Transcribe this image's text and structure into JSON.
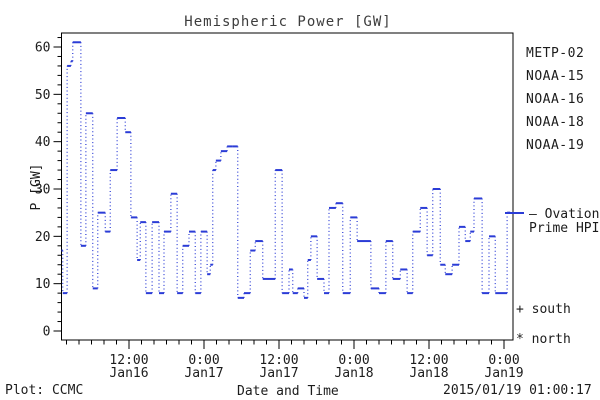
{
  "window": {
    "background": "#ffffff"
  },
  "chart": {
    "plot_credit": "Plot: CCMC",
    "timestamp": "2015/01/19 01:00:17",
    "south_marker": "+ south",
    "north_marker": "* north",
    "ovation_line1": "— Ovation",
    "ovation_line2": "Prime HPI"
  },
  "legend": {
    "items": [
      {
        "label": "METP-02",
        "color": "#1a1a1a"
      },
      {
        "label": "NOAA-15",
        "color": "#1e2bf2"
      },
      {
        "label": "NOAA-16",
        "color": "#38c0f5"
      },
      {
        "label": "NOAA-18",
        "color": "#70e895"
      },
      {
        "label": "NOAA-19",
        "color": "#f99c21"
      }
    ]
  },
  "chart_data": {
    "type": "line",
    "style": "stepped-dotted-histogram",
    "title": "Hemispheric Power [GW]",
    "xlabel": "Date and Time",
    "ylabel": "P [GW]",
    "series_name": "Ovation Prime HPI",
    "series_color": "#2b3cd6",
    "ylim": [
      0,
      63
    ],
    "yticks": [
      0,
      10,
      20,
      30,
      40,
      50,
      60
    ],
    "y_minor_step_gw": 2,
    "x_minor_step_hours": 2,
    "grid": false,
    "legend_position": "right-outside",
    "x_axis_note": "hours since 2015-01-16 00:00 UT",
    "x_hours_range": [
      1.2,
      73.0
    ],
    "xticks": [
      {
        "hour": 12,
        "time": "12:00",
        "date": "Jan16"
      },
      {
        "hour": 24,
        "time": "0:00",
        "date": "Jan17"
      },
      {
        "hour": 36,
        "time": "12:00",
        "date": "Jan17"
      },
      {
        "hour": 48,
        "time": "0:00",
        "date": "Jan18"
      },
      {
        "hour": 60,
        "time": "12:00",
        "date": "Jan18"
      },
      {
        "hour": 72,
        "time": "0:00",
        "date": "Jan19"
      }
    ],
    "segments_hours_gw": [
      [
        1.2,
        1.4,
        17
      ],
      [
        1.4,
        2.1,
        8
      ],
      [
        2.1,
        2.7,
        56
      ],
      [
        2.7,
        3.0,
        57
      ],
      [
        3.0,
        4.3,
        61
      ],
      [
        4.3,
        5.1,
        18
      ],
      [
        5.1,
        6.2,
        46
      ],
      [
        6.2,
        7.0,
        9
      ],
      [
        7.0,
        8.2,
        25
      ],
      [
        8.2,
        9.0,
        21
      ],
      [
        9.0,
        10.1,
        34
      ],
      [
        10.1,
        11.4,
        45
      ],
      [
        11.4,
        12.3,
        42
      ],
      [
        12.3,
        13.3,
        24
      ],
      [
        13.3,
        13.8,
        15
      ],
      [
        13.8,
        14.7,
        23
      ],
      [
        14.7,
        15.7,
        8
      ],
      [
        15.7,
        16.8,
        23
      ],
      [
        16.8,
        17.6,
        8
      ],
      [
        17.6,
        18.7,
        21
      ],
      [
        18.7,
        19.7,
        29
      ],
      [
        19.7,
        20.6,
        8
      ],
      [
        20.6,
        21.6,
        18
      ],
      [
        21.6,
        22.6,
        21
      ],
      [
        22.6,
        23.5,
        8
      ],
      [
        23.5,
        24.5,
        21
      ],
      [
        24.5,
        25.0,
        12
      ],
      [
        25.0,
        25.4,
        14
      ],
      [
        25.4,
        25.9,
        34
      ],
      [
        25.9,
        26.7,
        36
      ],
      [
        26.7,
        27.7,
        38
      ],
      [
        27.7,
        28.5,
        39
      ],
      [
        28.5,
        29.4,
        39
      ],
      [
        29.4,
        30.4,
        7
      ],
      [
        30.4,
        31.4,
        8
      ],
      [
        31.4,
        32.2,
        17
      ],
      [
        32.2,
        33.4,
        19
      ],
      [
        33.4,
        35.4,
        11
      ],
      [
        35.4,
        36.5,
        34
      ],
      [
        36.5,
        37.6,
        8
      ],
      [
        37.6,
        38.2,
        13
      ],
      [
        38.2,
        39.0,
        8
      ],
      [
        39.0,
        40.0,
        9
      ],
      [
        40.0,
        40.6,
        7
      ],
      [
        40.6,
        41.1,
        15
      ],
      [
        41.1,
        42.1,
        20
      ],
      [
        42.1,
        43.2,
        11
      ],
      [
        43.2,
        44.0,
        8
      ],
      [
        44.0,
        45.1,
        26
      ],
      [
        45.1,
        46.2,
        27
      ],
      [
        46.2,
        47.4,
        8
      ],
      [
        47.4,
        48.5,
        24
      ],
      [
        48.5,
        50.7,
        19
      ],
      [
        50.7,
        52.0,
        9
      ],
      [
        52.0,
        53.1,
        8
      ],
      [
        53.1,
        54.2,
        19
      ],
      [
        54.2,
        55.4,
        11
      ],
      [
        55.4,
        56.5,
        13
      ],
      [
        56.5,
        57.4,
        8
      ],
      [
        57.4,
        58.6,
        21
      ],
      [
        58.6,
        59.7,
        26
      ],
      [
        59.7,
        60.6,
        16
      ],
      [
        60.6,
        61.8,
        30
      ],
      [
        61.8,
        62.6,
        14
      ],
      [
        62.6,
        63.7,
        12
      ],
      [
        63.7,
        64.8,
        14
      ],
      [
        64.8,
        65.8,
        22
      ],
      [
        65.8,
        66.6,
        19
      ],
      [
        66.6,
        67.2,
        21
      ],
      [
        67.2,
        68.5,
        28
      ],
      [
        68.5,
        69.6,
        8
      ],
      [
        69.6,
        70.6,
        20
      ],
      [
        70.6,
        72.5,
        8
      ],
      [
        72.5,
        73.0,
        25
      ]
    ]
  }
}
